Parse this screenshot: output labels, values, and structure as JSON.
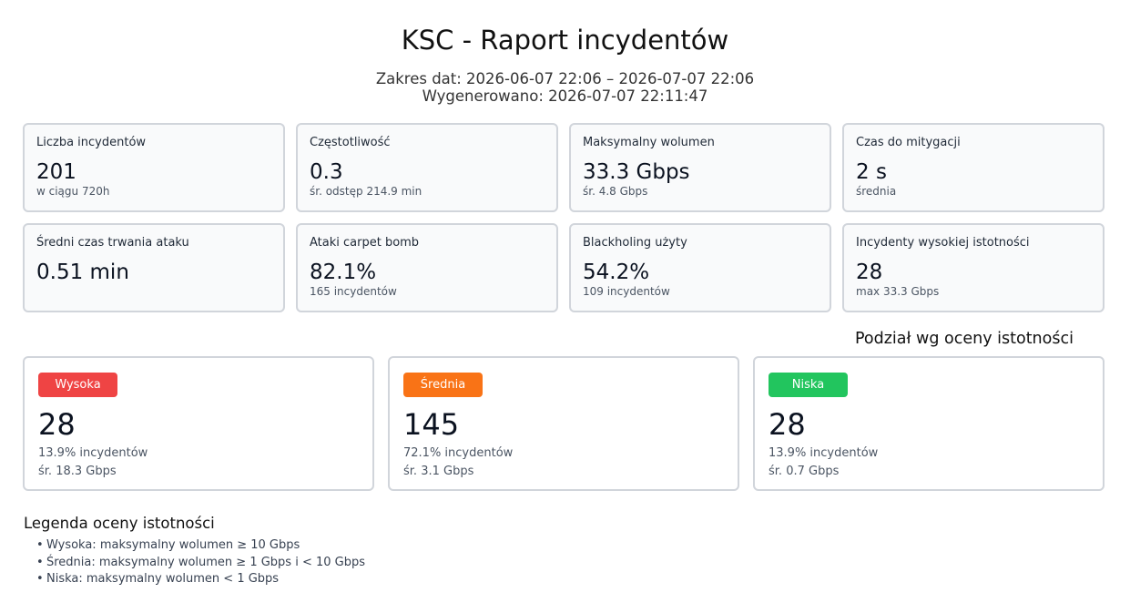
{
  "report": {
    "title": "KSC - Raport incydentów",
    "date_range": "Zakres dat: 2026-06-07 22:06 – 2026-07-07 22:06",
    "generated": "Wygenerowano: 2026-07-07 22:11:47"
  },
  "stats": [
    {
      "label": "Liczba incydentów",
      "value": "201",
      "sub": "w ciągu 720h"
    },
    {
      "label": "Częstotliwość",
      "value": "0.3",
      "sub": "śr. odstęp 214.9 min"
    },
    {
      "label": "Maksymalny wolumen",
      "value": "33.3 Gbps",
      "sub": "śr. 4.8 Gbps"
    },
    {
      "label": "Czas do mitygacji",
      "value": "2 s",
      "sub": "średnia"
    },
    {
      "label": "Średni czas trwania ataku",
      "value": "0.51 min",
      "sub": ""
    },
    {
      "label": "Ataki carpet bomb",
      "value": "82.1%",
      "sub": "165 incydentów"
    },
    {
      "label": "Blackholing użyty",
      "value": "54.2%",
      "sub": "109 incydentów"
    },
    {
      "label": "Incydenty wysokiej istotności",
      "value": "28",
      "sub": "max 33.3 Gbps"
    }
  ],
  "severity": {
    "title": "Podział wg oceny istotności",
    "items": [
      {
        "label": "Wysoka",
        "color": "#ef4444",
        "count": "28",
        "percent": "13.9% incydentów",
        "avg": "śr. 18.3 Gbps"
      },
      {
        "label": "Średnia",
        "color": "#f97316",
        "count": "145",
        "percent": "72.1% incydentów",
        "avg": "śr. 3.1 Gbps"
      },
      {
        "label": "Niska",
        "color": "#22c55e",
        "count": "28",
        "percent": "13.9% incydentów",
        "avg": "śr. 0.7 Gbps"
      }
    ]
  },
  "legend": {
    "title": "Legenda oceny istotności",
    "bullet": "•",
    "items": [
      "Wysoka: maksymalny wolumen ≥ 10 Gbps",
      "Średnia: maksymalny wolumen ≥ 1 Gbps i < 10 Gbps",
      "Niska: maksymalny wolumen < 1 Gbps"
    ]
  }
}
